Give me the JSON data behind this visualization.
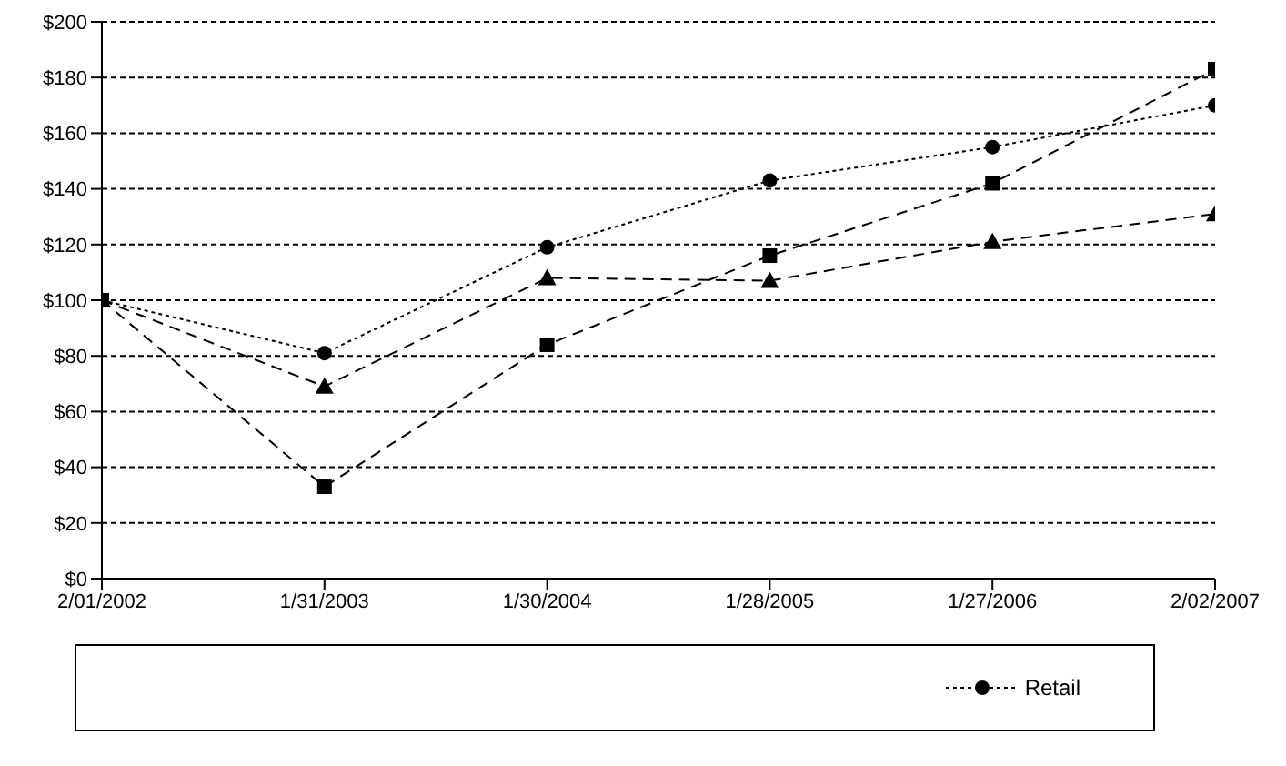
{
  "chart_data": {
    "type": "line",
    "categories": [
      "2/01/2002",
      "1/31/2003",
      "1/30/2004",
      "1/28/2005",
      "1/27/2006",
      "2/02/2007"
    ],
    "series": [
      {
        "color": "#000000",
        "marker": "square",
        "line_style": "dashed",
        "values": [
          100,
          33,
          84,
          116,
          142,
          183
        ]
      },
      {
        "color": "#000000",
        "marker": "triangle",
        "line_style": "dashed",
        "values": [
          100,
          69,
          108,
          107,
          121,
          131
        ]
      },
      {
        "name": "Retail",
        "color": "#000000",
        "marker": "circle",
        "line_style": "dotted",
        "values": [
          100,
          81,
          119,
          143,
          155,
          170
        ]
      }
    ],
    "ylim": [
      0,
      200
    ],
    "yticks": [
      {
        "value": 0,
        "label": "$0"
      },
      {
        "value": 20,
        "label": "$20"
      },
      {
        "value": 40,
        "label": "$40"
      },
      {
        "value": 60,
        "label": "$60"
      },
      {
        "value": 80,
        "label": "$80"
      },
      {
        "value": 100,
        "label": "$100"
      },
      {
        "value": 120,
        "label": "$120"
      },
      {
        "value": 140,
        "label": "$140"
      },
      {
        "value": 160,
        "label": "$160"
      },
      {
        "value": 180,
        "label": "$180"
      },
      {
        "value": 200,
        "label": "$200"
      }
    ],
    "grid": "y",
    "legend": "bottom"
  }
}
